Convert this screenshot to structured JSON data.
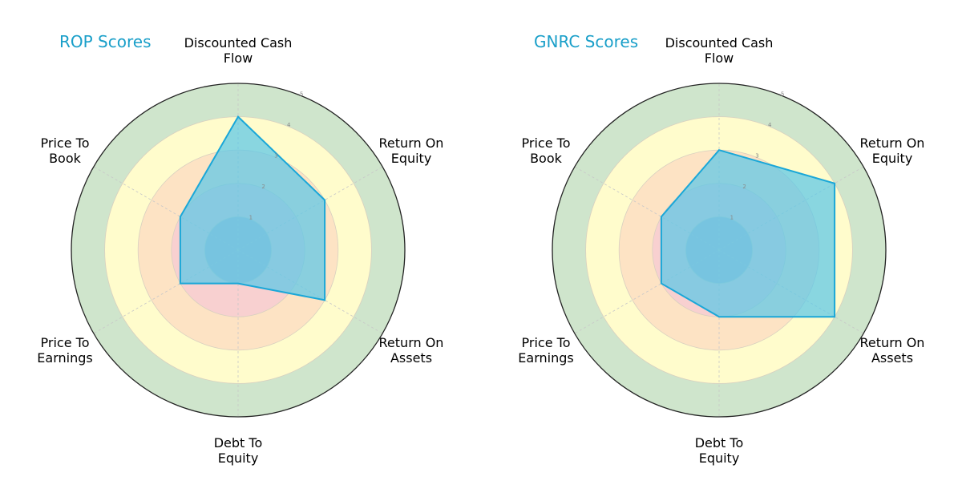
{
  "chart_data": [
    {
      "type": "radar",
      "title": "ROP Scores",
      "categories": [
        "Discounted Cash\nFlow",
        "Return On\nEquity",
        "Return On\nAssets",
        "Debt To\nEquity",
        "Price To\nEarnings",
        "Price To\nBook"
      ],
      "values": [
        4,
        3,
        3,
        1,
        2,
        2
      ],
      "rlim": [
        0,
        5
      ],
      "rticks": [
        "1",
        "2",
        "3",
        "4",
        "5"
      ],
      "fill_color": "#5bc8e8",
      "line_color": "#1aa7d8"
    },
    {
      "type": "radar",
      "title": "GNRC Scores",
      "categories": [
        "Discounted Cash\nFlow",
        "Return On\nEquity",
        "Return On\nAssets",
        "Debt To\nEquity",
        "Price To\nEarnings",
        "Price To\nBook"
      ],
      "values": [
        3,
        4,
        4,
        2,
        2,
        2
      ],
      "rlim": [
        0,
        5
      ],
      "rticks": [
        "1",
        "2",
        "3",
        "4",
        "5"
      ],
      "fill_color": "#5bc8e8",
      "line_color": "#1aa7d8"
    }
  ],
  "band_colors": [
    "#8fa8c8",
    "#f8d0d0",
    "#fde3c4",
    "#fffccc",
    "#cfe5cc"
  ],
  "labels": {
    "rop_title": "ROP Scores",
    "gnrc_title": "GNRC Scores",
    "dcf": "Discounted Cash\nFlow",
    "roe": "Return On\nEquity",
    "roa": "Return On\nAssets",
    "de": "Debt To\nEquity",
    "pe": "Price To\nEarnings",
    "pb": "Price To\nBook"
  }
}
